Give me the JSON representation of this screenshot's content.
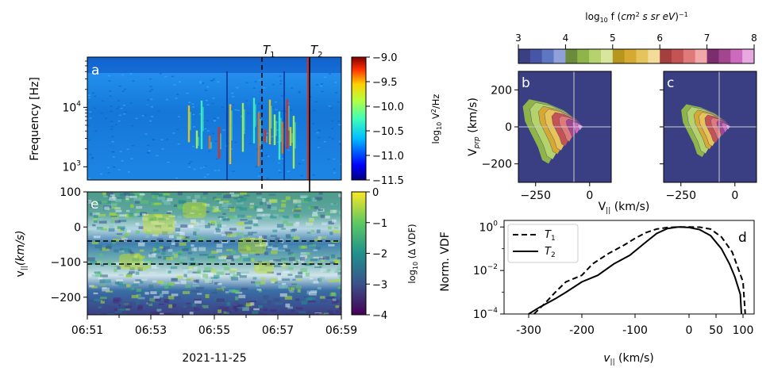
{
  "panel_labels": {
    "a": "a",
    "b": "b",
    "c": "c",
    "d": "d",
    "e": "e"
  },
  "markers": {
    "t1": "T",
    "t1_sub": "1",
    "t2": "T",
    "t2_sub": "2"
  },
  "chart_data": [
    {
      "id": "a",
      "type": "heatmap",
      "ylabel": "Frequency [Hz]",
      "yscale": "log",
      "ylim": [
        600,
        70000
      ],
      "yticks": [
        {
          "v": 1000,
          "base": "10",
          "exp": "3"
        },
        {
          "v": 10000,
          "base": "10",
          "exp": "4"
        }
      ],
      "xlim_minutes": [
        0,
        8
      ],
      "colorbar": {
        "label": "log10 V²/Hz",
        "ticks": [
          "−9.0",
          "−9.5",
          "−10.0",
          "−10.5",
          "−11.0",
          "−11.5"
        ],
        "range": [
          -11.5,
          -9.0
        ],
        "colormap": "jet"
      },
      "bursts_minutes": [
        3.2,
        3.45,
        3.6,
        3.85,
        4.15,
        4.5,
        4.9,
        5.25,
        5.4,
        5.6,
        5.75,
        5.9,
        6.05,
        6.15,
        6.3,
        6.4,
        6.5
      ],
      "line_features_minutes": [
        4.4,
        6.2,
        6.95
      ]
    },
    {
      "id": "e",
      "type": "heatmap",
      "ylabel": "v||(km/s)",
      "ylim": [
        -250,
        100
      ],
      "yticks": [
        "100",
        "0",
        "−100",
        "−200"
      ],
      "xlabel": "2021-11-25",
      "xticks": [
        "06:51",
        "06:53",
        "06:55",
        "06:57",
        "06:59"
      ],
      "dashed_levels_kms": [
        -40,
        -105
      ],
      "colorbar": {
        "label": "log10 (Δ VDF)",
        "ticks": [
          "0",
          "−1",
          "−2",
          "−3",
          "−4"
        ],
        "range": [
          -4,
          0
        ],
        "colormap": "viridis"
      }
    },
    {
      "id": "b",
      "type": "heatmap",
      "ylabel": "Vprp (km/s)",
      "ylim": [
        -300,
        300
      ],
      "yticks": [
        "200",
        "0",
        "−200"
      ],
      "xticks": [
        "−250",
        "0"
      ],
      "xlim": [
        -330,
        100
      ],
      "time": "T1"
    },
    {
      "id": "c",
      "type": "heatmap",
      "ylim": [
        -300,
        300
      ],
      "xticks": [
        "−250",
        "0"
      ],
      "xlim": [
        -330,
        100
      ],
      "time": "T2"
    },
    {
      "id": "bc_colorbar",
      "label": "log10 f (cm² s sr eV)−1",
      "ticks": [
        "3",
        "4",
        "5",
        "6",
        "7",
        "8"
      ],
      "range": [
        3,
        8
      ],
      "shared_xlabel": "V|| (km/s)"
    },
    {
      "id": "d",
      "type": "line",
      "ylabel": "Norm. VDF",
      "xlabel": "v|| (km/s)",
      "yscale": "log",
      "ylim": [
        0.0001,
        2
      ],
      "xticks": [
        "-300",
        "-200",
        "-100",
        "0",
        "50",
        "100"
      ],
      "yticks": [
        {
          "v": 1,
          "base": "10",
          "exp": "0"
        },
        {
          "v": 0.01,
          "base": "10",
          "exp": "−2"
        },
        {
          "v": 0.0001,
          "base": "10",
          "exp": "−4"
        }
      ],
      "legend_position": "top-left",
      "series": [
        {
          "name": "T1",
          "style": "dashed",
          "x": [
            -290,
            -270,
            -250,
            -230,
            -200,
            -180,
            -150,
            -120,
            -100,
            -80,
            -60,
            -40,
            -20,
            0,
            20,
            40,
            60,
            80,
            100,
            103
          ],
          "y": [
            0.0001,
            0.0003,
            0.001,
            0.003,
            0.006,
            0.02,
            0.06,
            0.15,
            0.3,
            0.55,
            0.8,
            0.95,
            1,
            1,
            0.98,
            0.8,
            0.35,
            0.07,
            0.003,
            0.0001
          ]
        },
        {
          "name": "T2",
          "style": "solid",
          "x": [
            -300,
            -280,
            -250,
            -230,
            -200,
            -170,
            -140,
            -110,
            -80,
            -60,
            -40,
            -20,
            0,
            20,
            40,
            60,
            75,
            85,
            95,
            97
          ],
          "y": [
            0.0001,
            0.0002,
            0.0005,
            0.001,
            0.003,
            0.006,
            0.02,
            0.05,
            0.2,
            0.5,
            0.85,
            1,
            0.95,
            0.75,
            0.4,
            0.1,
            0.02,
            0.005,
            0.0008,
            0.0001
          ]
        }
      ]
    }
  ]
}
